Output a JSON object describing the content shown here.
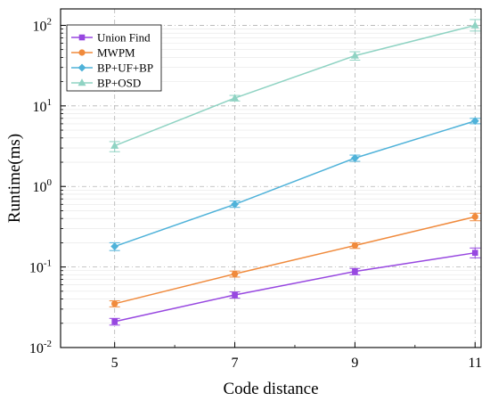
{
  "chart_data": {
    "type": "line",
    "title": "",
    "xlabel": "Code distance",
    "ylabel": "Runtime(ms)",
    "x": [
      5,
      7,
      9,
      11
    ],
    "xlim": [
      4.1,
      11.1
    ],
    "ylim": [
      0.01,
      160
    ],
    "yscale": "log",
    "grid": true,
    "legend_position": "top-left",
    "x_ticks": [
      "5",
      "7",
      "9",
      "11"
    ],
    "y_ticks": [
      {
        "base": "10",
        "exp": "-2",
        "value": 0.01
      },
      {
        "base": "10",
        "exp": "-1",
        "value": 0.1
      },
      {
        "base": "10",
        "exp": "0",
        "value": 1
      },
      {
        "base": "10",
        "exp": "1",
        "value": 10
      },
      {
        "base": "10",
        "exp": "2",
        "value": 100
      }
    ],
    "series": [
      {
        "name": "Union Find",
        "color": "#9747e0",
        "marker": "square",
        "values": [
          0.021,
          0.045,
          0.088,
          0.15
        ],
        "err_low": [
          0.019,
          0.041,
          0.08,
          0.13
        ],
        "err_high": [
          0.023,
          0.049,
          0.096,
          0.172
        ]
      },
      {
        "name": "MWPM",
        "color": "#f08a3c",
        "marker": "circle",
        "values": [
          0.035,
          0.082,
          0.185,
          0.42
        ],
        "err_low": [
          0.032,
          0.075,
          0.17,
          0.375
        ],
        "err_high": [
          0.038,
          0.089,
          0.2,
          0.465
        ]
      },
      {
        "name": "BP+UF+BP",
        "color": "#4fb2d9",
        "marker": "diamond",
        "values": [
          0.18,
          0.6,
          2.25,
          6.5
        ],
        "err_low": [
          0.16,
          0.55,
          2.05,
          6.0
        ],
        "err_high": [
          0.2,
          0.66,
          2.45,
          7.0
        ]
      },
      {
        "name": "BP+OSD",
        "color": "#8fd3c3",
        "marker": "triangle",
        "values": [
          3.2,
          12.5,
          42,
          100
        ],
        "err_low": [
          2.7,
          11.5,
          37,
          85
        ],
        "err_high": [
          3.6,
          13.5,
          47,
          118
        ]
      }
    ]
  }
}
